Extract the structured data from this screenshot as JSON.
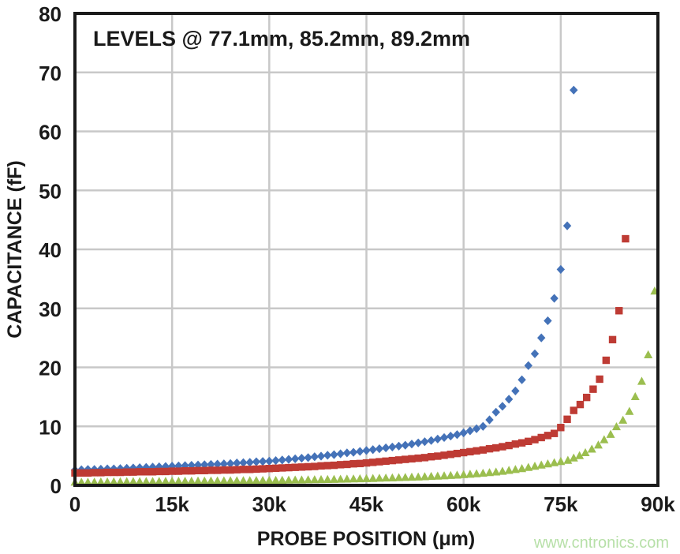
{
  "chart_data": {
    "type": "scatter",
    "annotation": "LEVELS @ 77.1mm, 85.2mm, 89.2mm",
    "xlabel": "PROBE POSITION (μm)",
    "ylabel": "CAPACITANCE (fF)",
    "watermark": "www.cntronics.com",
    "x_unit_note": "x values below are in thousands of μm",
    "xlim": [
      0,
      90
    ],
    "ylim": [
      0,
      80
    ],
    "grid": true,
    "legend_position": "none",
    "x_ticks": [
      {
        "value": 0,
        "label": "0"
      },
      {
        "value": 15,
        "label": "15k"
      },
      {
        "value": 30,
        "label": "30k"
      },
      {
        "value": 45,
        "label": "45k"
      },
      {
        "value": 60,
        "label": "60k"
      },
      {
        "value": 75,
        "label": "75k"
      },
      {
        "value": 90,
        "label": "90k"
      }
    ],
    "y_ticks": [
      0,
      10,
      20,
      30,
      40,
      50,
      60,
      70,
      80
    ],
    "colors": {
      "series_blue": "#4472B8",
      "series_red": "#BE3B34",
      "series_green": "#9BBE4F",
      "gridline": "#C8C8C8",
      "axis_frame": "#1A1A1A",
      "watermark": "#B7E0A8",
      "background": "#FFFFFF"
    },
    "series": [
      {
        "id": "level-77-1mm",
        "name": "Level @ 77.1mm",
        "marker": "diamond",
        "color": "#4472B8",
        "points": [
          [
            0,
            2.6
          ],
          [
            1,
            2.65
          ],
          [
            2,
            2.7
          ],
          [
            3,
            2.7
          ],
          [
            4,
            2.75
          ],
          [
            5,
            2.8
          ],
          [
            6,
            2.8
          ],
          [
            7,
            2.85
          ],
          [
            8,
            2.9
          ],
          [
            9,
            2.95
          ],
          [
            10,
            3.0
          ],
          [
            11,
            3.05
          ],
          [
            12,
            3.1
          ],
          [
            13,
            3.15
          ],
          [
            14,
            3.2
          ],
          [
            15,
            3.25
          ],
          [
            16,
            3.3
          ],
          [
            17,
            3.35
          ],
          [
            18,
            3.4
          ],
          [
            19,
            3.45
          ],
          [
            20,
            3.5
          ],
          [
            21,
            3.55
          ],
          [
            22,
            3.6
          ],
          [
            23,
            3.65
          ],
          [
            24,
            3.7
          ],
          [
            25,
            3.8
          ],
          [
            26,
            3.85
          ],
          [
            27,
            3.9
          ],
          [
            28,
            4.0
          ],
          [
            29,
            4.05
          ],
          [
            30,
            4.1
          ],
          [
            31,
            4.2
          ],
          [
            32,
            4.3
          ],
          [
            33,
            4.4
          ],
          [
            34,
            4.5
          ],
          [
            35,
            4.6
          ],
          [
            36,
            4.7
          ],
          [
            37,
            4.85
          ],
          [
            38,
            4.95
          ],
          [
            39,
            5.1
          ],
          [
            40,
            5.2
          ],
          [
            41,
            5.35
          ],
          [
            42,
            5.5
          ],
          [
            43,
            5.6
          ],
          [
            44,
            5.75
          ],
          [
            45,
            5.9
          ],
          [
            46,
            6.05
          ],
          [
            47,
            6.2
          ],
          [
            48,
            6.35
          ],
          [
            49,
            6.5
          ],
          [
            50,
            6.65
          ],
          [
            51,
            6.8
          ],
          [
            52,
            7.0
          ],
          [
            53,
            7.2
          ],
          [
            54,
            7.4
          ],
          [
            55,
            7.6
          ],
          [
            56,
            7.85
          ],
          [
            57,
            8.1
          ],
          [
            58,
            8.35
          ],
          [
            59,
            8.6
          ],
          [
            60,
            8.9
          ],
          [
            61,
            9.25
          ],
          [
            62,
            9.6
          ],
          [
            63,
            10.0
          ],
          [
            64,
            11.1
          ],
          [
            65,
            12.4
          ],
          [
            66,
            13.4
          ],
          [
            67,
            14.6
          ],
          [
            68,
            16.0
          ],
          [
            69,
            17.9
          ],
          [
            70,
            20.3
          ],
          [
            71,
            22.3
          ],
          [
            72,
            25.0
          ],
          [
            73,
            27.9
          ],
          [
            74,
            31.7
          ],
          [
            75,
            36.6
          ],
          [
            76,
            44.0
          ],
          [
            77,
            67.0
          ]
        ]
      },
      {
        "id": "level-85-2mm",
        "name": "Level @ 85.2mm",
        "marker": "square",
        "color": "#BE3B34",
        "points": [
          [
            0,
            2.1
          ],
          [
            1,
            2.1
          ],
          [
            2,
            2.1
          ],
          [
            3,
            2.15
          ],
          [
            4,
            2.15
          ],
          [
            5,
            2.2
          ],
          [
            6,
            2.2
          ],
          [
            7,
            2.2
          ],
          [
            8,
            2.25
          ],
          [
            9,
            2.25
          ],
          [
            10,
            2.3
          ],
          [
            11,
            2.3
          ],
          [
            12,
            2.3
          ],
          [
            13,
            2.35
          ],
          [
            14,
            2.35
          ],
          [
            15,
            2.4
          ],
          [
            16,
            2.4
          ],
          [
            17,
            2.45
          ],
          [
            18,
            2.45
          ],
          [
            19,
            2.5
          ],
          [
            20,
            2.5
          ],
          [
            21,
            2.55
          ],
          [
            22,
            2.55
          ],
          [
            23,
            2.6
          ],
          [
            24,
            2.6
          ],
          [
            25,
            2.65
          ],
          [
            26,
            2.7
          ],
          [
            27,
            2.7
          ],
          [
            28,
            2.75
          ],
          [
            29,
            2.8
          ],
          [
            30,
            2.85
          ],
          [
            31,
            2.9
          ],
          [
            32,
            2.95
          ],
          [
            33,
            3.0
          ],
          [
            34,
            3.05
          ],
          [
            35,
            3.1
          ],
          [
            36,
            3.15
          ],
          [
            37,
            3.2
          ],
          [
            38,
            3.3
          ],
          [
            39,
            3.35
          ],
          [
            40,
            3.4
          ],
          [
            41,
            3.5
          ],
          [
            42,
            3.55
          ],
          [
            43,
            3.65
          ],
          [
            44,
            3.7
          ],
          [
            45,
            3.8
          ],
          [
            46,
            3.9
          ],
          [
            47,
            4.0
          ],
          [
            48,
            4.1
          ],
          [
            49,
            4.2
          ],
          [
            50,
            4.3
          ],
          [
            51,
            4.4
          ],
          [
            52,
            4.5
          ],
          [
            53,
            4.6
          ],
          [
            54,
            4.7
          ],
          [
            55,
            4.85
          ],
          [
            56,
            4.95
          ],
          [
            57,
            5.1
          ],
          [
            58,
            5.25
          ],
          [
            59,
            5.4
          ],
          [
            60,
            5.55
          ],
          [
            61,
            5.7
          ],
          [
            62,
            5.85
          ],
          [
            63,
            6.0
          ],
          [
            64,
            6.2
          ],
          [
            65,
            6.35
          ],
          [
            66,
            6.55
          ],
          [
            67,
            6.75
          ],
          [
            68,
            7.0
          ],
          [
            69,
            7.2
          ],
          [
            70,
            7.45
          ],
          [
            71,
            7.75
          ],
          [
            72,
            8.1
          ],
          [
            73,
            8.45
          ],
          [
            74,
            8.8
          ],
          [
            75,
            9.8
          ],
          [
            76,
            11.2
          ],
          [
            77,
            12.7
          ],
          [
            78,
            13.7
          ],
          [
            79,
            14.9
          ],
          [
            80,
            16.3
          ],
          [
            81,
            18.0
          ],
          [
            82,
            21.2
          ],
          [
            83,
            24.7
          ],
          [
            84,
            29.6
          ],
          [
            85,
            41.8
          ]
        ]
      },
      {
        "id": "level-89-2mm",
        "name": "Level @ 89.2mm",
        "marker": "triangle",
        "color": "#9BBE4F",
        "points": [
          [
            0,
            0.6
          ],
          [
            1,
            0.6
          ],
          [
            2,
            0.6
          ],
          [
            3,
            0.62
          ],
          [
            4,
            0.64
          ],
          [
            5,
            0.65
          ],
          [
            6,
            0.66
          ],
          [
            7,
            0.68
          ],
          [
            8,
            0.69
          ],
          [
            9,
            0.7
          ],
          [
            10,
            0.7
          ],
          [
            11,
            0.71
          ],
          [
            12,
            0.72
          ],
          [
            13,
            0.73
          ],
          [
            14,
            0.74
          ],
          [
            15,
            0.75
          ],
          [
            16,
            0.76
          ],
          [
            17,
            0.77
          ],
          [
            18,
            0.78
          ],
          [
            19,
            0.79
          ],
          [
            20,
            0.8
          ],
          [
            21,
            0.81
          ],
          [
            22,
            0.82
          ],
          [
            23,
            0.83
          ],
          [
            24,
            0.84
          ],
          [
            25,
            0.85
          ],
          [
            26,
            0.86
          ],
          [
            27,
            0.87
          ],
          [
            28,
            0.88
          ],
          [
            29,
            0.89
          ],
          [
            30,
            0.9
          ],
          [
            31,
            0.92
          ],
          [
            32,
            0.93
          ],
          [
            33,
            0.95
          ],
          [
            34,
            0.97
          ],
          [
            35,
            0.98
          ],
          [
            36,
            1.0
          ],
          [
            37,
            1.02
          ],
          [
            38,
            1.04
          ],
          [
            39,
            1.06
          ],
          [
            40,
            1.08
          ],
          [
            41,
            1.1
          ],
          [
            42,
            1.13
          ],
          [
            43,
            1.15
          ],
          [
            44,
            1.18
          ],
          [
            45,
            1.2
          ],
          [
            46,
            1.23
          ],
          [
            47,
            1.27
          ],
          [
            48,
            1.3
          ],
          [
            49,
            1.33
          ],
          [
            50,
            1.37
          ],
          [
            51,
            1.4
          ],
          [
            52,
            1.44
          ],
          [
            53,
            1.48
          ],
          [
            54,
            1.53
          ],
          [
            55,
            1.58
          ],
          [
            56,
            1.63
          ],
          [
            57,
            1.68
          ],
          [
            58,
            1.74
          ],
          [
            59,
            1.8
          ],
          [
            60,
            1.87
          ],
          [
            61,
            1.95
          ],
          [
            62,
            2.03
          ],
          [
            63,
            2.12
          ],
          [
            64,
            2.22
          ],
          [
            65,
            2.32
          ],
          [
            66,
            2.45
          ],
          [
            67,
            2.6
          ],
          [
            68,
            2.75
          ],
          [
            69,
            2.9
          ],
          [
            70,
            3.1
          ],
          [
            71,
            3.3
          ],
          [
            72,
            3.5
          ],
          [
            73,
            3.7
          ],
          [
            74,
            3.9
          ],
          [
            75,
            4.1
          ],
          [
            76.1,
            4.3
          ],
          [
            77,
            4.7
          ],
          [
            77.9,
            5.1
          ],
          [
            78.8,
            5.6
          ],
          [
            79.8,
            6.2
          ],
          [
            80.8,
            6.9
          ],
          [
            81.7,
            7.8
          ],
          [
            82.7,
            8.7
          ],
          [
            83.6,
            10.0
          ],
          [
            84.6,
            11.1
          ],
          [
            85.6,
            12.6
          ],
          [
            86.5,
            15.1
          ],
          [
            87.5,
            17.7
          ],
          [
            88.5,
            22.2
          ],
          [
            89.5,
            33.0
          ]
        ]
      }
    ]
  }
}
